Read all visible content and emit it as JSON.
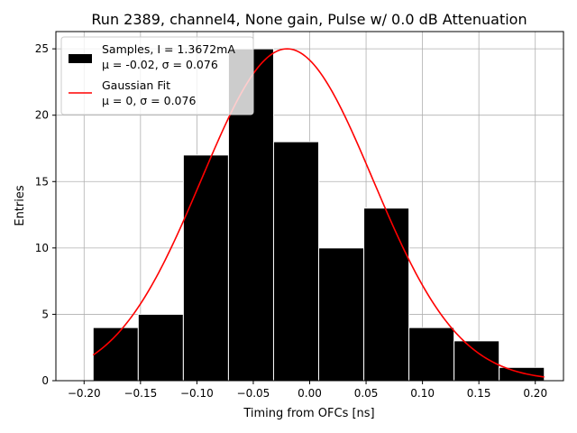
{
  "chart_data": {
    "type": "bar",
    "title": "Run 2389, channel4, None gain, Pulse w/ 0.0 dB Attenuation",
    "xlabel": "Timing from OFCs [ns]",
    "ylabel": "Entries",
    "xlim": [
      -0.225,
      0.225
    ],
    "ylim": [
      0,
      26.3
    ],
    "xticks": [
      -0.2,
      -0.15,
      -0.1,
      -0.05,
      0.0,
      0.05,
      0.1,
      0.15,
      0.2
    ],
    "xtick_labels": [
      "−0.20",
      "−0.15",
      "−0.10",
      "−0.05",
      "0.00",
      "0.05",
      "0.10",
      "0.15",
      "0.20"
    ],
    "yticks": [
      0,
      5,
      10,
      15,
      20,
      25
    ],
    "ytick_labels": [
      "0",
      "5",
      "10",
      "15",
      "20",
      "25"
    ],
    "grid": true,
    "legend_position": "top-left",
    "histogram": {
      "name": "Samples, I = 1.3672mA",
      "name_line2": "μ = -0.02, σ = 0.076",
      "bin_edges": [
        -0.192,
        -0.152,
        -0.112,
        -0.072,
        -0.032,
        0.008,
        0.048,
        0.088,
        0.128,
        0.168,
        0.208
      ],
      "counts": [
        4,
        5,
        17,
        25,
        18,
        10,
        13,
        4,
        3,
        1
      ],
      "color": "#000000",
      "edgecolor": "#ffffff"
    },
    "fit": {
      "name": "Gaussian Fit",
      "name_line2": "μ = 0, σ = 0.076",
      "mu": -0.02,
      "sigma": 0.076,
      "amplitude": 25,
      "x_range": [
        -0.192,
        0.208
      ],
      "color": "#ff0000"
    }
  }
}
